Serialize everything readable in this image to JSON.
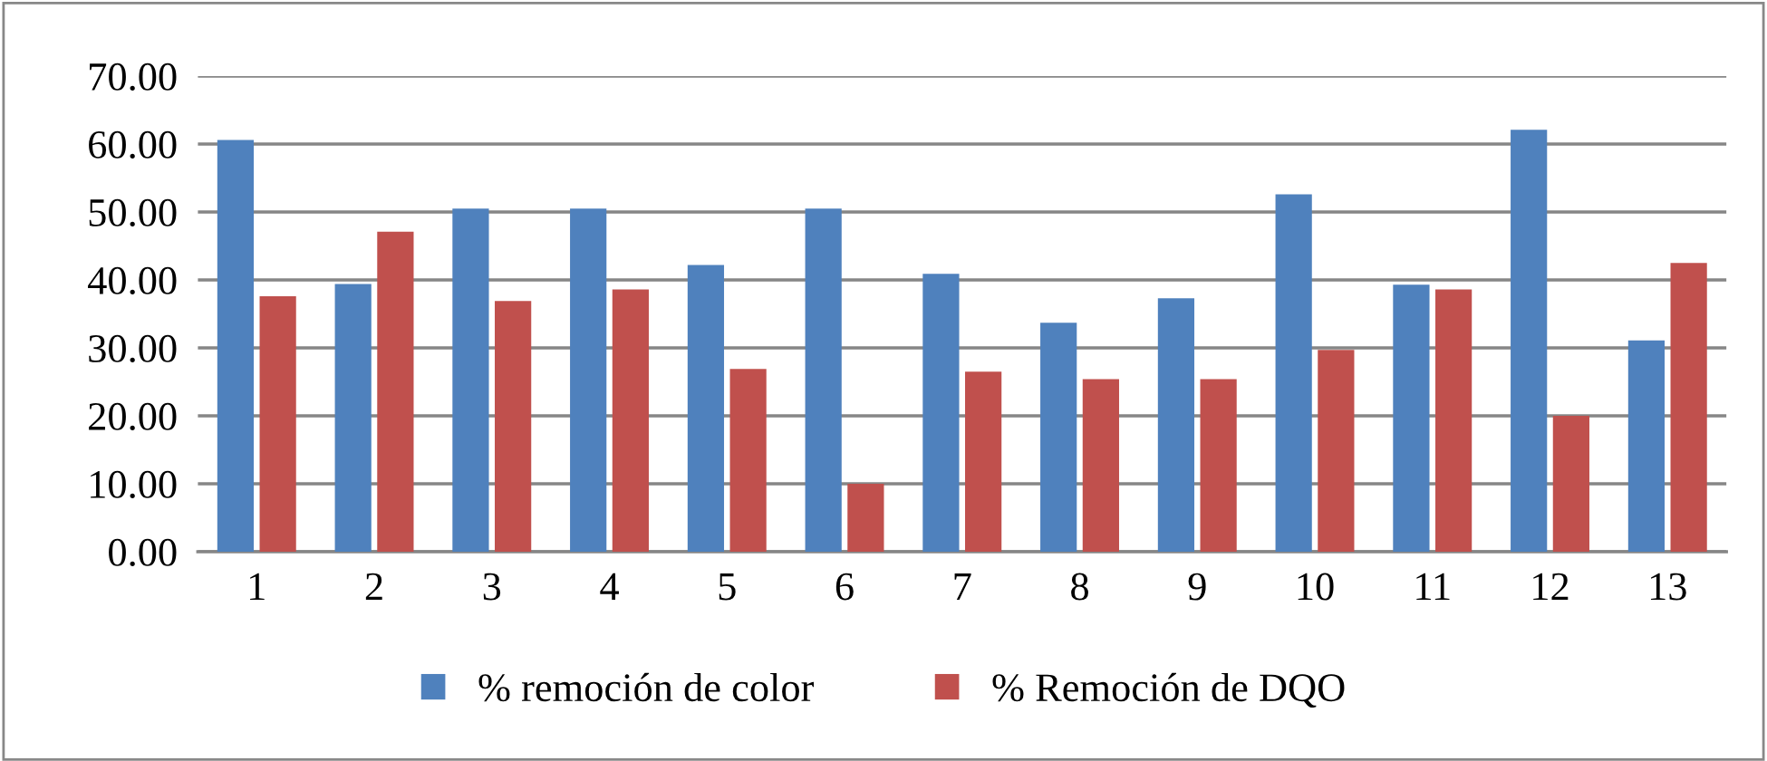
{
  "chart_data": {
    "type": "bar",
    "categories": [
      "1",
      "2",
      "3",
      "4",
      "5",
      "6",
      "7",
      "8",
      "9",
      "10",
      "11",
      "12",
      "13"
    ],
    "series": [
      {
        "name": "% remoción de color",
        "color": "#4f81bd",
        "values": [
          60.6,
          39.4,
          50.5,
          50.5,
          42.2,
          50.5,
          40.9,
          33.7,
          37.3,
          52.6,
          39.3,
          62.1,
          31.1
        ]
      },
      {
        "name": "% Remoción de DQO",
        "color": "#c0504d",
        "values": [
          37.6,
          47.1,
          36.9,
          38.6,
          26.9,
          10.0,
          26.5,
          25.4,
          25.4,
          29.7,
          38.6,
          20.0,
          42.5
        ]
      }
    ],
    "ylim": [
      0,
      70
    ],
    "yticks": [
      {
        "value": 0,
        "label": "0.00"
      },
      {
        "value": 10,
        "label": "10.00"
      },
      {
        "value": 20,
        "label": "20.00"
      },
      {
        "value": 30,
        "label": "30.00"
      },
      {
        "value": 40,
        "label": "40.00"
      },
      {
        "value": 50,
        "label": "50.00"
      },
      {
        "value": 60,
        "label": "60.00"
      },
      {
        "value": 70,
        "label": "70.00"
      }
    ],
    "grid": "y",
    "legend": "bottom"
  }
}
